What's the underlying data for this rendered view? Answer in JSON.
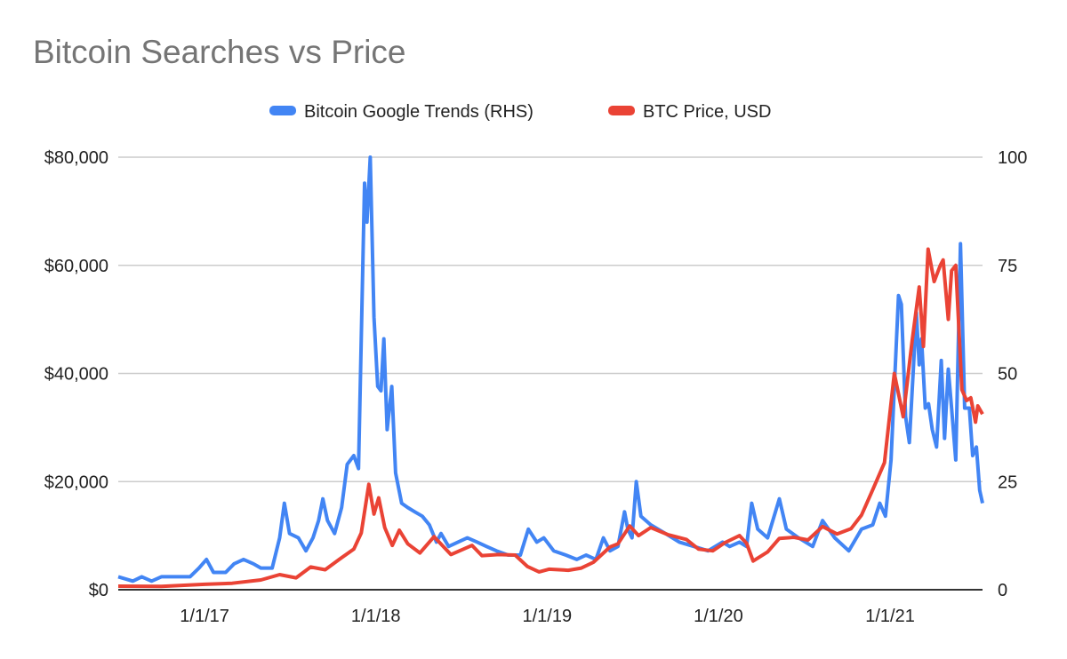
{
  "chart_data": {
    "type": "line",
    "title": "Bitcoin Searches vs Price",
    "legend_position": "top",
    "grid": true,
    "x_ticks": [
      "1/1/17",
      "1/1/18",
      "1/1/19",
      "1/1/20",
      "1/1/21"
    ],
    "x_tick_dates": [
      "2017-01-01",
      "2018-01-01",
      "2019-01-01",
      "2020-01-01",
      "2021-01-01"
    ],
    "xlim": [
      "2016-07-01",
      "2021-07-17"
    ],
    "y_left": {
      "ylim": [
        0,
        80000
      ],
      "ticks": [
        "$0",
        "$20,000",
        "$40,000",
        "$60,000",
        "$80,000"
      ],
      "tick_values": [
        0,
        20000,
        40000,
        60000,
        80000
      ]
    },
    "y_right": {
      "ylim": [
        0,
        100
      ],
      "ticks": [
        "0",
        "25",
        "50",
        "75",
        "100"
      ],
      "tick_values": [
        0,
        25,
        50,
        75,
        100
      ]
    },
    "series": [
      {
        "name": "Bitcoin Google Trends (RHS)",
        "axis": "right",
        "color": "#4285F4",
        "points": [
          [
            "2016-07-01",
            3
          ],
          [
            "2016-08-01",
            2
          ],
          [
            "2016-08-20",
            3
          ],
          [
            "2016-09-10",
            2
          ],
          [
            "2016-10-01",
            3
          ],
          [
            "2016-11-01",
            3
          ],
          [
            "2016-12-01",
            3
          ],
          [
            "2016-12-20",
            5
          ],
          [
            "2017-01-05",
            7
          ],
          [
            "2017-01-20",
            4
          ],
          [
            "2017-02-15",
            4
          ],
          [
            "2017-03-05",
            6
          ],
          [
            "2017-03-25",
            7
          ],
          [
            "2017-04-15",
            6
          ],
          [
            "2017-05-01",
            5
          ],
          [
            "2017-05-25",
            5
          ],
          [
            "2017-06-10",
            12
          ],
          [
            "2017-06-20",
            20
          ],
          [
            "2017-07-01",
            13
          ],
          [
            "2017-07-20",
            12
          ],
          [
            "2017-08-05",
            9
          ],
          [
            "2017-08-20",
            12
          ],
          [
            "2017-09-01",
            16
          ],
          [
            "2017-09-10",
            21
          ],
          [
            "2017-09-20",
            16
          ],
          [
            "2017-10-05",
            13
          ],
          [
            "2017-10-20",
            19
          ],
          [
            "2017-11-01",
            29
          ],
          [
            "2017-11-15",
            31
          ],
          [
            "2017-11-25",
            28
          ],
          [
            "2017-12-08",
            94
          ],
          [
            "2017-12-13",
            85
          ],
          [
            "2017-12-20",
            100
          ],
          [
            "2017-12-28",
            63
          ],
          [
            "2018-01-05",
            47
          ],
          [
            "2018-01-12",
            46
          ],
          [
            "2018-01-18",
            58
          ],
          [
            "2018-01-25",
            37
          ],
          [
            "2018-02-04",
            47
          ],
          [
            "2018-02-12",
            27
          ],
          [
            "2018-02-25",
            20
          ],
          [
            "2018-03-10",
            19
          ],
          [
            "2018-03-25",
            18
          ],
          [
            "2018-04-10",
            17
          ],
          [
            "2018-04-25",
            15
          ],
          [
            "2018-05-10",
            11
          ],
          [
            "2018-05-20",
            13
          ],
          [
            "2018-06-05",
            10
          ],
          [
            "2018-06-25",
            11
          ],
          [
            "2018-07-15",
            12
          ],
          [
            "2018-08-05",
            11
          ],
          [
            "2018-08-25",
            10
          ],
          [
            "2018-09-15",
            9
          ],
          [
            "2018-10-10",
            8
          ],
          [
            "2018-11-05",
            8
          ],
          [
            "2018-11-22",
            14
          ],
          [
            "2018-12-10",
            11
          ],
          [
            "2018-12-25",
            12
          ],
          [
            "2019-01-15",
            9
          ],
          [
            "2019-02-10",
            8
          ],
          [
            "2019-03-05",
            7
          ],
          [
            "2019-03-25",
            8
          ],
          [
            "2019-04-15",
            7
          ],
          [
            "2019-05-01",
            12
          ],
          [
            "2019-05-15",
            9
          ],
          [
            "2019-06-01",
            10
          ],
          [
            "2019-06-15",
            18
          ],
          [
            "2019-06-22",
            14
          ],
          [
            "2019-07-01",
            12
          ],
          [
            "2019-07-10",
            25
          ],
          [
            "2019-07-20",
            17
          ],
          [
            "2019-08-10",
            15
          ],
          [
            "2019-09-10",
            13
          ],
          [
            "2019-10-10",
            11
          ],
          [
            "2019-11-10",
            10
          ],
          [
            "2019-12-10",
            9
          ],
          [
            "2020-01-10",
            11
          ],
          [
            "2020-01-25",
            10
          ],
          [
            "2020-02-15",
            11
          ],
          [
            "2020-03-01",
            10
          ],
          [
            "2020-03-12",
            20
          ],
          [
            "2020-03-25",
            14
          ],
          [
            "2020-04-15",
            12
          ],
          [
            "2020-05-10",
            21
          ],
          [
            "2020-05-25",
            14
          ],
          [
            "2020-06-20",
            12
          ],
          [
            "2020-07-20",
            10
          ],
          [
            "2020-08-10",
            16
          ],
          [
            "2020-09-05",
            12
          ],
          [
            "2020-10-05",
            9
          ],
          [
            "2020-11-01",
            14
          ],
          [
            "2020-11-25",
            15
          ],
          [
            "2020-12-10",
            20
          ],
          [
            "2020-12-22",
            17
          ],
          [
            "2021-01-03",
            30
          ],
          [
            "2021-01-19",
            68
          ],
          [
            "2021-01-25",
            66
          ],
          [
            "2021-02-03",
            40
          ],
          [
            "2021-02-11",
            34
          ],
          [
            "2021-02-26",
            64
          ],
          [
            "2021-03-04",
            52
          ],
          [
            "2021-03-09",
            58
          ],
          [
            "2021-03-17",
            42
          ],
          [
            "2021-03-24",
            43
          ],
          [
            "2021-04-01",
            37
          ],
          [
            "2021-04-10",
            33
          ],
          [
            "2021-04-20",
            53
          ],
          [
            "2021-04-27",
            35
          ],
          [
            "2021-05-05",
            51
          ],
          [
            "2021-05-12",
            42
          ],
          [
            "2021-05-21",
            30
          ],
          [
            "2021-05-31",
            80
          ],
          [
            "2021-06-09",
            42
          ],
          [
            "2021-06-19",
            42
          ],
          [
            "2021-06-26",
            31
          ],
          [
            "2021-07-04",
            33
          ],
          [
            "2021-07-11",
            23
          ],
          [
            "2021-07-17",
            20
          ]
        ]
      },
      {
        "name": "BTC Price, USD",
        "axis": "left",
        "color": "#EA4335",
        "points": [
          [
            "2016-07-01",
            650
          ],
          [
            "2016-10-01",
            620
          ],
          [
            "2017-01-01",
            1000
          ],
          [
            "2017-03-01",
            1200
          ],
          [
            "2017-05-01",
            1800
          ],
          [
            "2017-06-10",
            2800
          ],
          [
            "2017-07-15",
            2200
          ],
          [
            "2017-08-15",
            4200
          ],
          [
            "2017-09-15",
            3700
          ],
          [
            "2017-10-15",
            5600
          ],
          [
            "2017-11-15",
            7500
          ],
          [
            "2017-12-01",
            10500
          ],
          [
            "2017-12-17",
            19500
          ],
          [
            "2017-12-28",
            14000
          ],
          [
            "2018-01-07",
            17000
          ],
          [
            "2018-01-20",
            11500
          ],
          [
            "2018-02-05",
            8200
          ],
          [
            "2018-02-20",
            11000
          ],
          [
            "2018-03-10",
            8500
          ],
          [
            "2018-04-05",
            6800
          ],
          [
            "2018-05-05",
            9800
          ],
          [
            "2018-06-10",
            6500
          ],
          [
            "2018-07-25",
            8200
          ],
          [
            "2018-08-15",
            6300
          ],
          [
            "2018-09-20",
            6500
          ],
          [
            "2018-10-25",
            6400
          ],
          [
            "2018-11-20",
            4300
          ],
          [
            "2018-12-15",
            3300
          ],
          [
            "2019-01-05",
            3800
          ],
          [
            "2019-02-15",
            3600
          ],
          [
            "2019-03-15",
            4000
          ],
          [
            "2019-04-10",
            5100
          ],
          [
            "2019-05-15",
            7900
          ],
          [
            "2019-06-01",
            8500
          ],
          [
            "2019-06-26",
            11800
          ],
          [
            "2019-07-15",
            10000
          ],
          [
            "2019-08-10",
            11500
          ],
          [
            "2019-09-15",
            10200
          ],
          [
            "2019-10-25",
            9300
          ],
          [
            "2019-11-20",
            7500
          ],
          [
            "2019-12-20",
            7200
          ],
          [
            "2020-01-15",
            8700
          ],
          [
            "2020-02-15",
            10000
          ],
          [
            "2020-03-01",
            8600
          ],
          [
            "2020-03-15",
            5300
          ],
          [
            "2020-04-15",
            7000
          ],
          [
            "2020-05-10",
            9500
          ],
          [
            "2020-06-10",
            9700
          ],
          [
            "2020-07-10",
            9200
          ],
          [
            "2020-08-10",
            11700
          ],
          [
            "2020-09-10",
            10300
          ],
          [
            "2020-10-10",
            11300
          ],
          [
            "2020-11-01",
            13800
          ],
          [
            "2020-11-25",
            18500
          ],
          [
            "2020-12-20",
            23500
          ],
          [
            "2021-01-10",
            40000
          ],
          [
            "2021-01-29",
            32000
          ],
          [
            "2021-02-17",
            46000
          ],
          [
            "2021-03-04",
            56000
          ],
          [
            "2021-03-13",
            45000
          ],
          [
            "2021-03-23",
            63000
          ],
          [
            "2021-04-05",
            57000
          ],
          [
            "2021-04-18",
            60000
          ],
          [
            "2021-04-24",
            61000
          ],
          [
            "2021-05-05",
            50000
          ],
          [
            "2021-05-12",
            59000
          ],
          [
            "2021-05-21",
            60000
          ],
          [
            "2021-06-03",
            37000
          ],
          [
            "2021-06-13",
            35000
          ],
          [
            "2021-06-22",
            35500
          ],
          [
            "2021-07-02",
            31000
          ],
          [
            "2021-07-07",
            34000
          ],
          [
            "2021-07-17",
            32500
          ]
        ]
      }
    ]
  }
}
